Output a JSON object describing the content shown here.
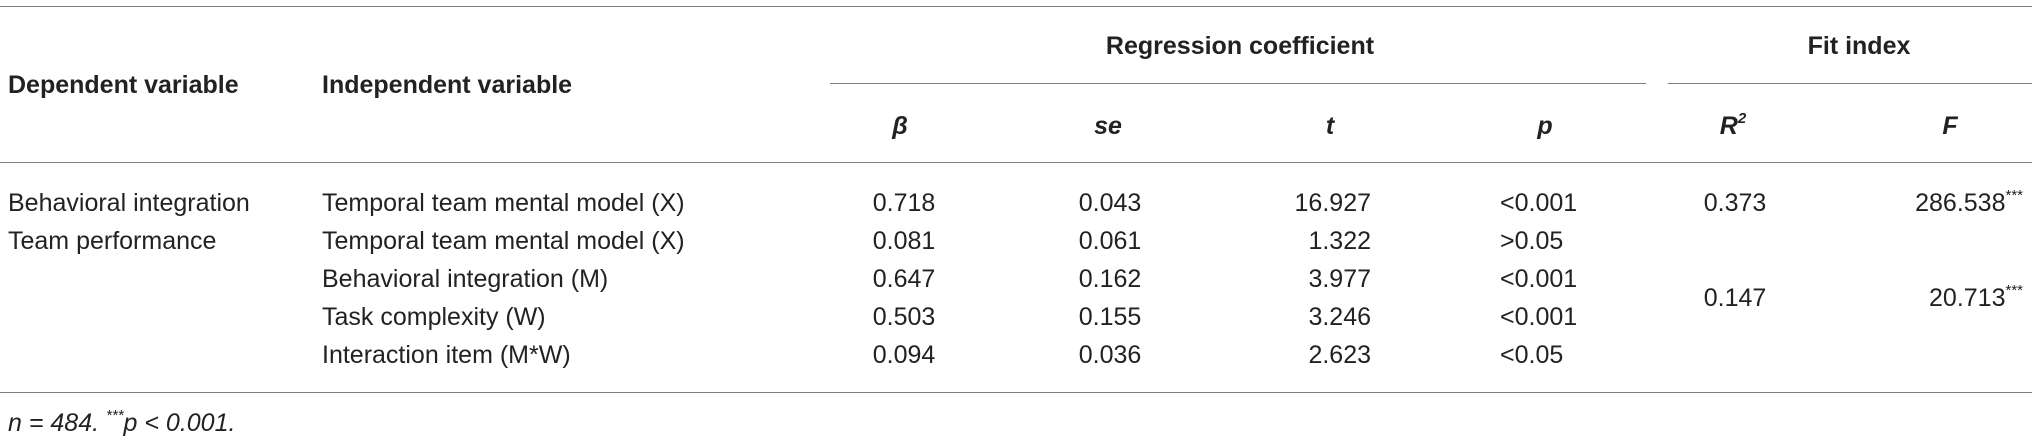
{
  "headers": {
    "dependent": "Dependent variable",
    "independent": "Independent variable",
    "regression_group": "Regression coefficient",
    "fit_group": "Fit index",
    "beta": "β",
    "se": "se",
    "t": "t",
    "p": "p",
    "r2_base": "R",
    "r2_sup": "2",
    "f": "F"
  },
  "rows": [
    {
      "dependent": "Behavioral integration",
      "independent": "Temporal team mental model (X)",
      "beta": "0.718",
      "se": "0.043",
      "t": "16.927",
      "p": "<0.001"
    },
    {
      "dependent": "Team performance",
      "independent": "Temporal team mental model (X)",
      "beta": "0.081",
      "se": "0.061",
      "t": "1.322",
      "p": ">0.05"
    },
    {
      "dependent": "",
      "independent": "Behavioral integration (M)",
      "beta": "0.647",
      "se": "0.162",
      "t": "3.977",
      "p": "<0.001"
    },
    {
      "dependent": "",
      "independent": "Task complexity (W)",
      "beta": "0.503",
      "se": "0.155",
      "t": "3.246",
      "p": "<0.001"
    },
    {
      "dependent": "",
      "independent": "Interaction item (M*W)",
      "beta": "0.094",
      "se": "0.036",
      "t": "2.623",
      "p": "<0.05"
    }
  ],
  "fit": [
    {
      "r2": "0.373",
      "f": "286.538",
      "f_sup": "***"
    },
    {
      "r2": "0.147",
      "f": "20.713",
      "f_sup": "***"
    }
  ],
  "note": {
    "n_label": "n",
    "n_value": " = 484. ",
    "sig_sup": "***",
    "p_label": "p",
    "p_text": " < 0.001."
  }
}
